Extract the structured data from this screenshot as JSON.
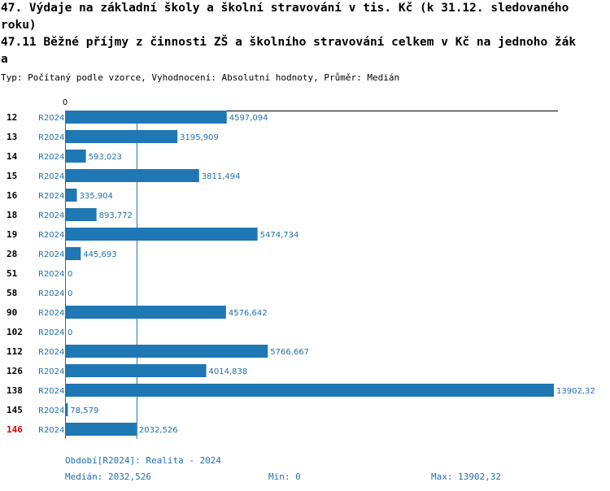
{
  "header": {
    "title_line1": "47. Výdaje na základní školy a školní stravování v tis. Kč (k 31.12. sledovaného",
    "title_line2": "roku)",
    "title_line3": "47.11 Běžné příjmy z činnosti ZŠ a školního stravování celkem v Kč na jednoho žák",
    "title_line4": "a",
    "subtitle": "Typ: Počítaný podle vzorce, Vyhodnocení: Absolutní hodnoty, Průměr: Medián"
  },
  "chart_data": {
    "type": "bar",
    "orientation": "horizontal",
    "title": "47.11 Běžné příjmy z činnosti ZŠ a školního stravování celkem v Kč na jednoho žáka",
    "axis_zero_label": "0",
    "xlim": [
      0,
      13902.32
    ],
    "reference_line": {
      "name": "Medián",
      "value": 2032.526
    },
    "series_name": "R2024",
    "rows": [
      {
        "category": "12",
        "series": "R2024",
        "value": 4597.094,
        "label": "4597,094",
        "highlight": false
      },
      {
        "category": "13",
        "series": "R2024",
        "value": 3195.909,
        "label": "3195,909",
        "highlight": false
      },
      {
        "category": "14",
        "series": "R2024",
        "value": 593.023,
        "label": "593,023",
        "highlight": false
      },
      {
        "category": "15",
        "series": "R2024",
        "value": 3811.494,
        "label": "3811,494",
        "highlight": false
      },
      {
        "category": "16",
        "series": "R2024",
        "value": 335.904,
        "label": "335,904",
        "highlight": false
      },
      {
        "category": "18",
        "series": "R2024",
        "value": 893.772,
        "label": "893,772",
        "highlight": false
      },
      {
        "category": "19",
        "series": "R2024",
        "value": 5474.734,
        "label": "5474,734",
        "highlight": false
      },
      {
        "category": "28",
        "series": "R2024",
        "value": 445.693,
        "label": "445,693",
        "highlight": false
      },
      {
        "category": "51",
        "series": "R2024",
        "value": 0,
        "label": "0",
        "highlight": false
      },
      {
        "category": "58",
        "series": "R2024",
        "value": 0,
        "label": "0",
        "highlight": false
      },
      {
        "category": "90",
        "series": "R2024",
        "value": 4576.642,
        "label": "4576,642",
        "highlight": false
      },
      {
        "category": "102",
        "series": "R2024",
        "value": 0,
        "label": "0",
        "highlight": false
      },
      {
        "category": "112",
        "series": "R2024",
        "value": 5766.667,
        "label": "5766,667",
        "highlight": false
      },
      {
        "category": "126",
        "series": "R2024",
        "value": 4014.838,
        "label": "4014,838",
        "highlight": false
      },
      {
        "category": "138",
        "series": "R2024",
        "value": 13902.32,
        "label": "13902,32",
        "highlight": false
      },
      {
        "category": "145",
        "series": "R2024",
        "value": 78.579,
        "label": "78,579",
        "highlight": false
      },
      {
        "category": "146",
        "series": "R2024",
        "value": 2032.526,
        "label": "2032,526",
        "highlight": true
      }
    ]
  },
  "footer": {
    "period": "Období[R2024]: Realita - 2024",
    "median": "Medián: 2032,526",
    "min": "Min: 0",
    "max": "Max: 13902,32"
  },
  "colors": {
    "bar": "#1f77b4",
    "label_blue": "#1f6fb0",
    "highlight_red": "#e00000",
    "median_line": "#1f6fb0"
  }
}
